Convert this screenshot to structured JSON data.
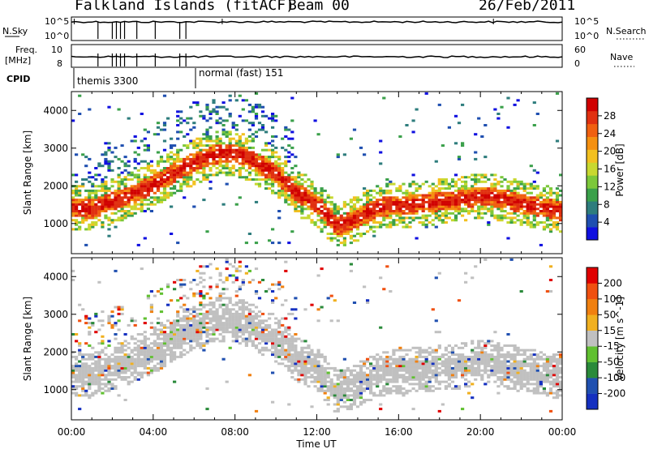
{
  "header": {
    "title": "Falkland Islands (fitACF)",
    "beam": "Beam 00",
    "date": "26/Feb/2011"
  },
  "chart_data": [
    {
      "type": "line",
      "panel": "noise",
      "left_label": "N.Sky",
      "right_label": "N.Search",
      "left_ticks": [
        "10^5",
        "10^0"
      ],
      "right_ticks": [
        "10^5",
        "10^0"
      ],
      "drops_hours": [
        1.3,
        2.0,
        2.2,
        2.4,
        2.6,
        3.2,
        4.1,
        5.3,
        5.6
      ]
    },
    {
      "type": "line",
      "panel": "frequency",
      "left_label_line1": "Freq.",
      "left_label_line2": "[MHz]",
      "right_label": "Nave",
      "left_ticks": [
        "10",
        "8"
      ],
      "right_ticks": [
        "60",
        "0"
      ],
      "cpid_label": "CPID",
      "modes": [
        {
          "name": "themis 3300",
          "start_hour": 0.0
        },
        {
          "name": "normal (fast) 151",
          "start_hour": 5.9
        }
      ]
    },
    {
      "type": "heatmap",
      "panel": "power",
      "ylabel": "Slant Range [km]",
      "yticks": [
        1000,
        2000,
        3000,
        4000
      ],
      "ylim": [
        200,
        4500
      ],
      "xlim": [
        0,
        24
      ],
      "colorbar_label": "Power [dB]",
      "colorbar_ticks": [
        "28",
        "24",
        "20",
        "16",
        "12",
        "8",
        "4"
      ],
      "colorbar_colors": [
        "#1010e0",
        "#1f4fb0",
        "#2e7d7d",
        "#3aa04a",
        "#7cc83a",
        "#c8d830",
        "#f2c020",
        "#f59010",
        "#f06010",
        "#e03010",
        "#d00000"
      ],
      "echo_band_km": [
        [
          0,
          1400
        ],
        [
          1,
          1350
        ],
        [
          2,
          1550
        ],
        [
          3,
          1750
        ],
        [
          4,
          2000
        ],
        [
          5,
          2300
        ],
        [
          6,
          2600
        ],
        [
          7,
          2800
        ],
        [
          8,
          2850
        ],
        [
          9,
          2600
        ],
        [
          10,
          2300
        ],
        [
          11,
          1800
        ],
        [
          12,
          1500
        ],
        [
          13,
          900
        ],
        [
          14,
          1100
        ],
        [
          15,
          1400
        ],
        [
          16,
          1450
        ],
        [
          17,
          1500
        ],
        [
          18,
          1550
        ],
        [
          19,
          1600
        ],
        [
          20,
          1700
        ],
        [
          21,
          1650
        ],
        [
          22,
          1500
        ],
        [
          23,
          1400
        ],
        [
          24,
          1300
        ]
      ]
    },
    {
      "type": "heatmap",
      "panel": "velocity",
      "ylabel": "Slant Range [km]",
      "yticks": [
        1000,
        2000,
        3000,
        4000
      ],
      "ylim": [
        200,
        4500
      ],
      "xlim": [
        0,
        24
      ],
      "xticks": [
        "00:00",
        "04:00",
        "08:00",
        "12:00",
        "16:00",
        "20:00",
        "00:00"
      ],
      "xlabel": "Time UT",
      "colorbar_label": "Velocity [m s^-1]",
      "colorbar_ticks": [
        "200",
        "100",
        "50",
        "15",
        "-15",
        "-50",
        "-100",
        "-200"
      ],
      "colorbar_colors": [
        "#1530c0",
        "#2050b0",
        "#2a8a3a",
        "#60c030",
        "#c0c0c0",
        "#f0b020",
        "#f08010",
        "#f05010",
        "#e00000"
      ],
      "echo_band_km": [
        [
          0,
          1400
        ],
        [
          1,
          1350
        ],
        [
          2,
          1550
        ],
        [
          3,
          1750
        ],
        [
          4,
          2000
        ],
        [
          5,
          2300
        ],
        [
          6,
          2600
        ],
        [
          7,
          2800
        ],
        [
          8,
          2850
        ],
        [
          9,
          2600
        ],
        [
          10,
          2300
        ],
        [
          11,
          1800
        ],
        [
          12,
          1500
        ],
        [
          13,
          900
        ],
        [
          14,
          1100
        ],
        [
          15,
          1400
        ],
        [
          16,
          1450
        ],
        [
          17,
          1500
        ],
        [
          18,
          1550
        ],
        [
          19,
          1600
        ],
        [
          20,
          1700
        ],
        [
          21,
          1650
        ],
        [
          22,
          1500
        ],
        [
          23,
          1400
        ],
        [
          24,
          1300
        ]
      ]
    }
  ]
}
